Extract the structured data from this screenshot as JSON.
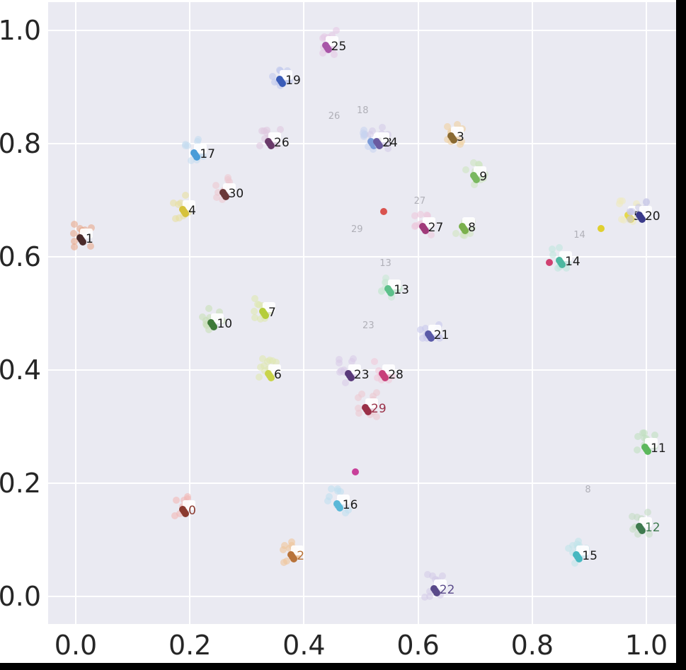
{
  "chart_data": {
    "type": "scatter",
    "title": "",
    "xlabel": "",
    "ylabel": "",
    "xlim": [
      -0.05,
      1.05
    ],
    "ylim": [
      -0.05,
      1.05
    ],
    "grid": true,
    "legend": "none",
    "x_ticks": [
      "0.0",
      "0.2",
      "0.4",
      "0.6",
      "0.8",
      "1.0"
    ],
    "y_ticks": [
      "0.0",
      "0.2",
      "0.4",
      "0.6",
      "0.8",
      "1.0"
    ],
    "clusters": [
      {
        "label": "0",
        "x": 0.19,
        "y": 0.15,
        "color": "#8b3a2f",
        "faint_color": "#f2b8b5"
      },
      {
        "label": "1",
        "x": 0.01,
        "y": 0.63,
        "color": "#4a2a2a",
        "faint_color": "#e8a98c"
      },
      {
        "label": "2",
        "x": 0.38,
        "y": 0.07,
        "color": "#b8733a",
        "faint_color": "#f0c59a"
      },
      {
        "label": "3",
        "x": 0.66,
        "y": 0.81,
        "color": "#8a6a32",
        "faint_color": "#f0d0a0"
      },
      {
        "label": "4",
        "x": 0.19,
        "y": 0.68,
        "color": "#d6c23a",
        "faint_color": "#e8e0a0"
      },
      {
        "label": "5",
        "x": 0.97,
        "y": 0.67,
        "color": "#e5d84a",
        "faint_color": "#eeeac0"
      },
      {
        "label": "6",
        "x": 0.34,
        "y": 0.39,
        "color": "#c9d44a",
        "faint_color": "#e0e8b0"
      },
      {
        "label": "7",
        "x": 0.33,
        "y": 0.5,
        "color": "#b5cd3a",
        "faint_color": "#dde8b0"
      },
      {
        "label": "8",
        "x": 0.68,
        "y": 0.65,
        "color": "#7ab04c",
        "faint_color": "#d0e4c0"
      },
      {
        "label": "9",
        "x": 0.7,
        "y": 0.74,
        "color": "#7ab860",
        "faint_color": "#cde4c0"
      },
      {
        "label": "10",
        "x": 0.24,
        "y": 0.48,
        "color": "#3f7a3a",
        "faint_color": "#c8e0b8"
      },
      {
        "label": "11",
        "x": 1.0,
        "y": 0.26,
        "color": "#5cb85c",
        "faint_color": "#c0e0c0"
      },
      {
        "label": "12",
        "x": 0.99,
        "y": 0.12,
        "color": "#3e7a4e",
        "faint_color": "#c4dcc4"
      },
      {
        "label": "13",
        "x": 0.55,
        "y": 0.54,
        "color": "#5cc08a",
        "faint_color": "#c8e8d4"
      },
      {
        "label": "14",
        "x": 0.85,
        "y": 0.59,
        "color": "#4cb8a0",
        "faint_color": "#bfe6de"
      },
      {
        "label": "15",
        "x": 0.88,
        "y": 0.07,
        "color": "#48b8c0",
        "faint_color": "#c0e4ea"
      },
      {
        "label": "16",
        "x": 0.46,
        "y": 0.16,
        "color": "#5ab8d8",
        "faint_color": "#bfe0f0"
      },
      {
        "label": "17",
        "x": 0.21,
        "y": 0.78,
        "color": "#4a9cd8",
        "faint_color": "#c4dcf0"
      },
      {
        "label": "18",
        "x": 0.52,
        "y": 0.8,
        "color": "#7a9ad8",
        "faint_color": "#c8d4f0"
      },
      {
        "label": "19",
        "x": 0.36,
        "y": 0.91,
        "color": "#3a5cb8",
        "faint_color": "#c0c8ec"
      },
      {
        "label": "20",
        "x": 0.99,
        "y": 0.67,
        "color": "#3a3a8a",
        "faint_color": "#c8c8e8"
      },
      {
        "label": "21",
        "x": 0.62,
        "y": 0.46,
        "color": "#5a5aa8",
        "faint_color": "#c8c8ec"
      },
      {
        "label": "22",
        "x": 0.63,
        "y": 0.01,
        "color": "#5a4a8a",
        "faint_color": "#d4cce8"
      },
      {
        "label": "23",
        "x": 0.48,
        "y": 0.39,
        "color": "#5a3a7a",
        "faint_color": "#d8cce8"
      },
      {
        "label": "24",
        "x": 0.53,
        "y": 0.8,
        "color": "#6a5aa0",
        "faint_color": "#d4cce8"
      },
      {
        "label": "25",
        "x": 0.44,
        "y": 0.97,
        "color": "#a855a8",
        "faint_color": "#e4c8e4"
      },
      {
        "label": "26",
        "x": 0.34,
        "y": 0.8,
        "color": "#6a3a6a",
        "faint_color": "#e0c8e0"
      },
      {
        "label": "27",
        "x": 0.61,
        "y": 0.65,
        "color": "#a03a7a",
        "faint_color": "#ecc8dc"
      },
      {
        "label": "28",
        "x": 0.54,
        "y": 0.39,
        "color": "#c8407a",
        "faint_color": "#f0c8d8"
      },
      {
        "label": "29",
        "x": 0.51,
        "y": 0.33,
        "color": "#9a3048",
        "faint_color": "#ecc8d0"
      },
      {
        "label": "30",
        "x": 0.26,
        "y": 0.71,
        "color": "#6a3838",
        "faint_color": "#ecc8d0"
      }
    ],
    "outliers": [
      {
        "x": 0.54,
        "y": 0.68,
        "color": "#d9534f"
      },
      {
        "x": 0.49,
        "y": 0.22,
        "color": "#c8409a"
      },
      {
        "x": 0.83,
        "y": 0.59,
        "color": "#d04070"
      },
      {
        "x": 0.92,
        "y": 0.65,
        "color": "#e0d030"
      }
    ],
    "faint_labels": [
      {
        "text": "29",
        "x": 0.49,
        "y": 0.65
      },
      {
        "text": "23",
        "x": 0.51,
        "y": 0.48
      },
      {
        "text": "18",
        "x": 0.5,
        "y": 0.86
      },
      {
        "text": "26",
        "x": 0.45,
        "y": 0.85
      },
      {
        "text": "14",
        "x": 0.88,
        "y": 0.64
      },
      {
        "text": "8",
        "x": 0.9,
        "y": 0.19
      },
      {
        "text": "13",
        "x": 0.54,
        "y": 0.59
      },
      {
        "text": "27",
        "x": 0.6,
        "y": 0.7
      }
    ]
  }
}
